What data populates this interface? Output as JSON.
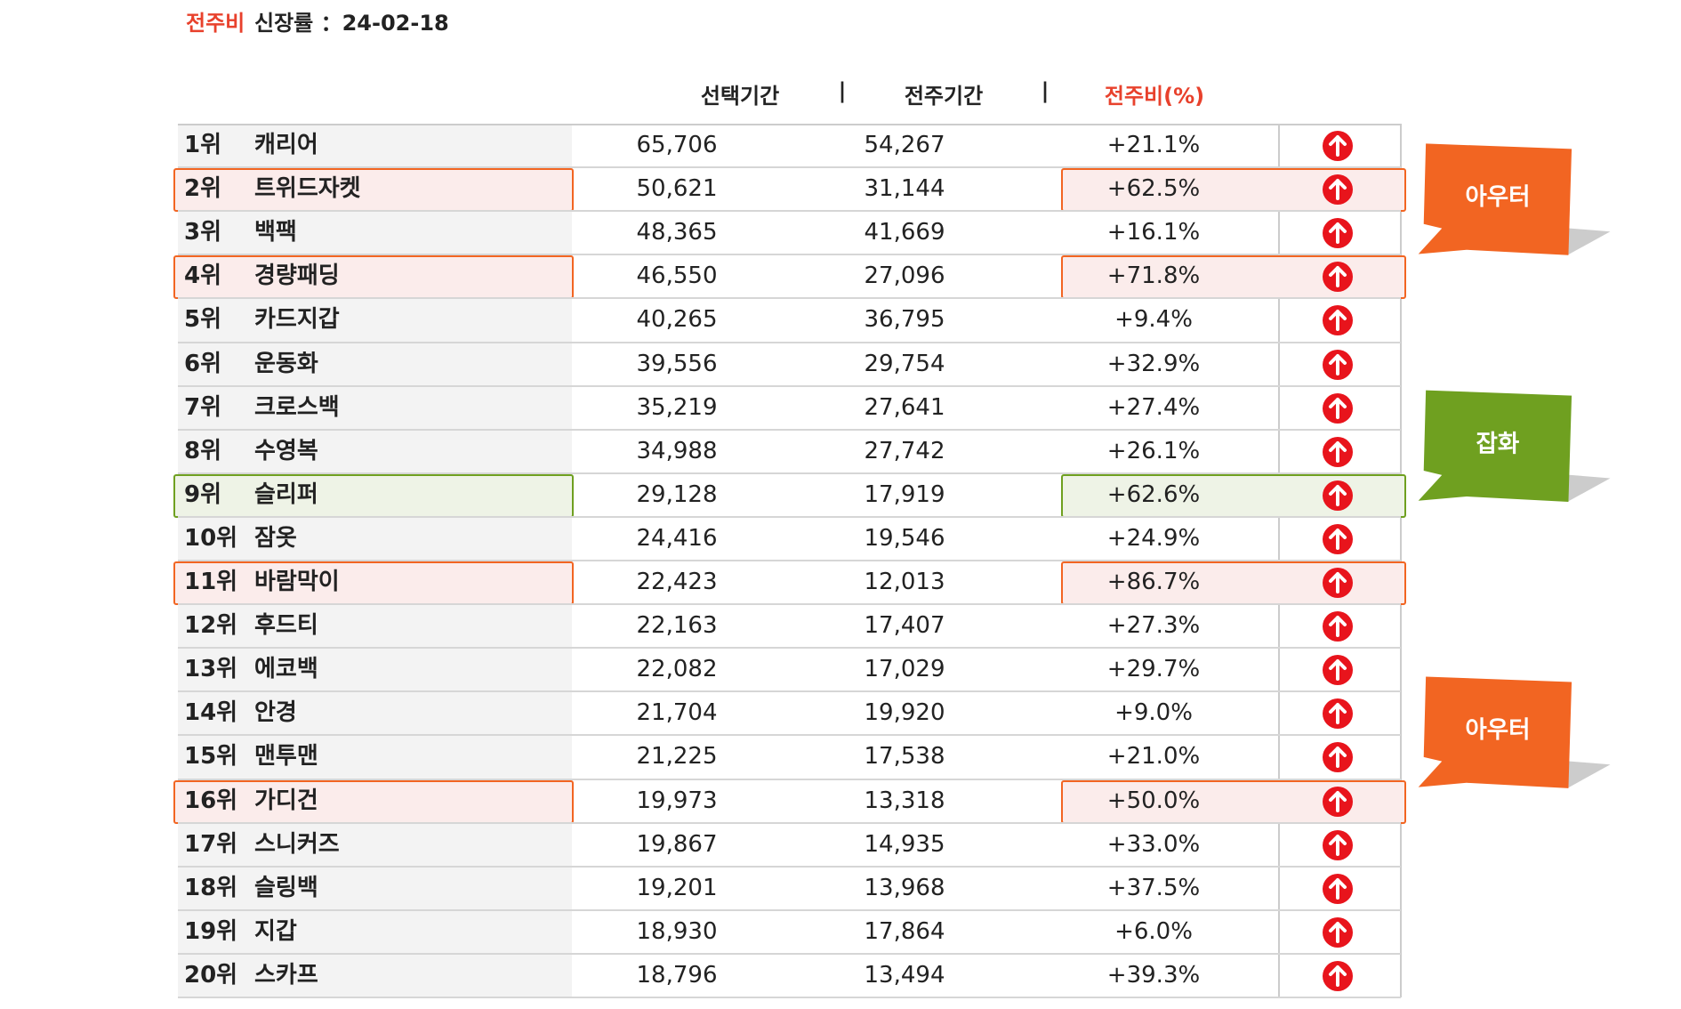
{
  "header": {
    "title_highlight": "전주비",
    "title_rest": "신장률 ：24-02-18"
  },
  "table": {
    "columns": [
      "선택기간",
      "|",
      "전주기간",
      "|",
      "전주비(%)"
    ],
    "rows": [
      {
        "rank": "1위",
        "name": "캐리어",
        "selected": "65,706",
        "previous": "54,267",
        "change": "+21.1%"
      },
      {
        "rank": "2위",
        "name": "트위드자켓",
        "selected": "50,621",
        "previous": "31,144",
        "change": "+62.5%",
        "highlight": "#f26522"
      },
      {
        "rank": "3위",
        "name": "백팩",
        "selected": "48,365",
        "previous": "41,669",
        "change": "+16.1%"
      },
      {
        "rank": "4위",
        "name": "경량패딩",
        "selected": "46,550",
        "previous": "27,096",
        "change": "+71.8%",
        "highlight": "#f26522"
      },
      {
        "rank": "5위",
        "name": "카드지갑",
        "selected": "40,265",
        "previous": "36,795",
        "change": "+9.4%"
      },
      {
        "rank": "6위",
        "name": "운동화",
        "selected": "39,556",
        "previous": "29,754",
        "change": "+32.9%"
      },
      {
        "rank": "7위",
        "name": "크로스백",
        "selected": "35,219",
        "previous": "27,641",
        "change": "+27.4%"
      },
      {
        "rank": "8위",
        "name": "수영복",
        "selected": "34,988",
        "previous": "27,742",
        "change": "+26.1%"
      },
      {
        "rank": "9위",
        "name": "슬리퍼",
        "selected": "29,128",
        "previous": "17,919",
        "change": "+62.6%",
        "highlight": "#6fa020"
      },
      {
        "rank": "10위",
        "name": "잠옷",
        "selected": "24,416",
        "previous": "19,546",
        "change": "+24.9%"
      },
      {
        "rank": "11위",
        "name": "바람막이",
        "selected": "22,423",
        "previous": "12,013",
        "change": "+86.7%",
        "highlight": "#f26522"
      },
      {
        "rank": "12위",
        "name": "후드티",
        "selected": "22,163",
        "previous": "17,407",
        "change": "+27.3%"
      },
      {
        "rank": "13위",
        "name": "에코백",
        "selected": "22,082",
        "previous": "17,029",
        "change": "+29.7%"
      },
      {
        "rank": "14위",
        "name": "안경",
        "selected": "21,704",
        "previous": "19,920",
        "change": "+9.0%"
      },
      {
        "rank": "15위",
        "name": "맨투맨",
        "selected": "21,225",
        "previous": "17,538",
        "change": "+21.0%"
      },
      {
        "rank": "16위",
        "name": "가디건",
        "selected": "19,973",
        "previous": "13,318",
        "change": "+50.0%",
        "highlight": "#f26522"
      },
      {
        "rank": "17위",
        "name": "스니커즈",
        "selected": "19,867",
        "previous": "14,935",
        "change": "+33.0%"
      },
      {
        "rank": "18위",
        "name": "슬링백",
        "selected": "19,201",
        "previous": "13,968",
        "change": "+37.5%"
      },
      {
        "rank": "19위",
        "name": "지갑",
        "selected": "18,930",
        "previous": "17,864",
        "change": "+6.0%"
      },
      {
        "rank": "20위",
        "name": "스카프",
        "selected": "18,796",
        "previous": "13,494",
        "change": "+39.3%"
      }
    ]
  },
  "callouts": [
    {
      "label": "아우터",
      "color": "#f26522"
    },
    {
      "label": "잡화",
      "color": "#6fa020"
    },
    {
      "label": "아우터",
      "color": "#f26522"
    }
  ]
}
